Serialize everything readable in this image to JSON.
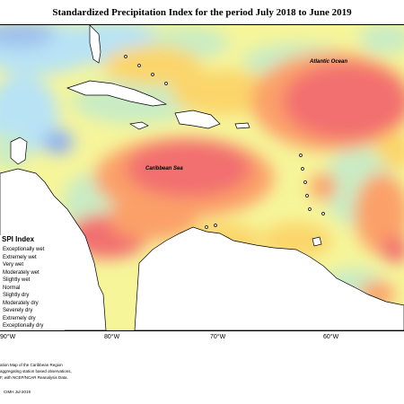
{
  "title": "Standardized Precipitation Index for the period July 2018 to June 2019",
  "map_labels": {
    "atlantic": "Atlantic Ocean",
    "caribbean": "Caribbean Sea"
  },
  "legend": {
    "title": "SPI Index",
    "items": [
      {
        "label": "Exceptionally wet",
        "color": "#3b5bd6"
      },
      {
        "label": "Extremely wet",
        "color": "#6b8ef0"
      },
      {
        "label": "Very wet",
        "color": "#9ec0ee"
      },
      {
        "label": "Moderately wet",
        "color": "#b8e3f5"
      },
      {
        "label": "Slightly wet",
        "color": "#c9ecc4"
      },
      {
        "label": "Normal",
        "color": "#ffffff"
      },
      {
        "label": "Slightly dry",
        "color": "#f6f59a"
      },
      {
        "label": "Moderately dry",
        "color": "#fbd56a"
      },
      {
        "label": "Severely dry",
        "color": "#fba069"
      },
      {
        "label": "Extremely dry",
        "color": "#f26f6f"
      },
      {
        "label": "Exceptionally dry",
        "color": "#c24040"
      }
    ]
  },
  "longitudes": [
    "90°W",
    "80°W",
    "70°W",
    "60°W"
  ],
  "notes": [
    "ation Map of the Caribbean Region",
    "aggregating station based observations,",
    "F, with NCEP/NCAR Reanalysis Data.",
    "CIMH  Jul-2019"
  ],
  "colors": {
    "very_wet": "#9ec0ee",
    "moderately_wet": "#b8e3f5",
    "slightly_wet": "#c9ecc4",
    "slightly_dry": "#f6f59a",
    "moderately_dry": "#fbd56a",
    "severely_dry": "#fba069",
    "extremely_dry": "#f26f6f",
    "extremely_wet": "#6b8ef0"
  }
}
